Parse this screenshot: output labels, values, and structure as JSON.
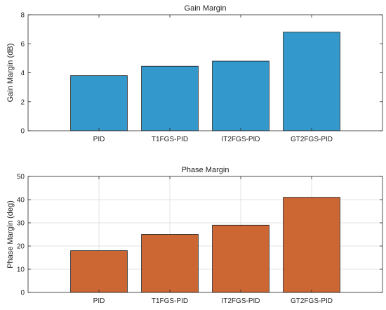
{
  "chart_data": [
    {
      "type": "bar",
      "title": "Gain Margin",
      "xlabel": "",
      "ylabel": "Gain Margin (dB)",
      "categories": [
        "PID",
        "T1FGS-PID",
        "IT2FGS-PID",
        "GT2FGS-PID"
      ],
      "values": [
        3.8,
        4.45,
        4.8,
        6.8
      ],
      "ylim": [
        0,
        8
      ],
      "yticks": [
        "0",
        "2",
        "4",
        "6",
        "8"
      ],
      "color": "#3399cc",
      "grid": false
    },
    {
      "type": "bar",
      "title": "Phase Margin",
      "xlabel": "",
      "ylabel": "Phase Margin (deg)",
      "categories": [
        "PID",
        "T1FGS-PID",
        "IT2FGS-PID",
        "GT2FGS-PID"
      ],
      "values": [
        18,
        25,
        29,
        41
      ],
      "ylim": [
        0,
        50
      ],
      "yticks": [
        "0",
        "10",
        "20",
        "30",
        "40",
        "50"
      ],
      "color": "#cc6633",
      "grid": true
    }
  ]
}
